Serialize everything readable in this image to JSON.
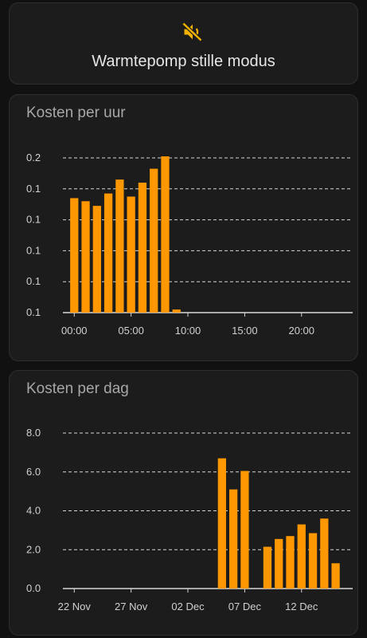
{
  "mode_card": {
    "label": "Warmtepomp stille modus",
    "icon": "volume-off-icon",
    "icon_color": "#f5b200"
  },
  "colors": {
    "bar": "#ff9800",
    "background": "#111111",
    "card": "#1c1c1c",
    "grid": "#d6d6d6"
  },
  "chart_data": [
    {
      "type": "bar",
      "title": "Kosten per uur",
      "xlabel": "",
      "ylabel": "",
      "x_unit": "hour of day",
      "x_ticks": [
        {
          "label": "00:00",
          "x": 0
        },
        {
          "label": "05:00",
          "x": 5
        },
        {
          "label": "10:00",
          "x": 10
        },
        {
          "label": "15:00",
          "x": 15
        },
        {
          "label": "20:00",
          "x": 20
        }
      ],
      "y_ticks": [
        {
          "label": "0.2",
          "value": 0.204
        },
        {
          "label": "0.1",
          "value": 0.184
        },
        {
          "label": "0.1",
          "value": 0.164
        },
        {
          "label": "0.1",
          "value": 0.144
        },
        {
          "label": "0.1",
          "value": 0.124
        },
        {
          "label": "0.1",
          "value": 0.104
        }
      ],
      "xlim": [
        -1,
        24.5
      ],
      "ylim": [
        0.104,
        0.204
      ],
      "grid": true,
      "x": [
        0,
        1,
        2,
        3,
        4,
        5,
        6,
        7,
        8,
        9
      ],
      "values": [
        0.178,
        0.176,
        0.173,
        0.181,
        0.19,
        0.179,
        0.188,
        0.197,
        0.205,
        0.106
      ]
    },
    {
      "type": "bar",
      "title": "Kosten per dag",
      "xlabel": "",
      "ylabel": "",
      "x_unit": "date",
      "x_ticks": [
        {
          "label": "22 Nov",
          "x": 0
        },
        {
          "label": "27 Nov",
          "x": 5
        },
        {
          "label": "02 Dec",
          "x": 10
        },
        {
          "label": "07 Dec",
          "x": 15
        },
        {
          "label": "12 Dec",
          "x": 20
        }
      ],
      "y_ticks": [
        {
          "label": "8.0",
          "value": 8
        },
        {
          "label": "6.0",
          "value": 6
        },
        {
          "label": "4.0",
          "value": 4
        },
        {
          "label": "2.0",
          "value": 2
        },
        {
          "label": "0.0",
          "value": 0
        }
      ],
      "xlim": [
        -1,
        24.5
      ],
      "ylim": [
        0,
        8
      ],
      "grid": true,
      "x": [
        13,
        14,
        15,
        17,
        18,
        19,
        20,
        21,
        22,
        23
      ],
      "values": [
        6.7,
        5.1,
        6.05,
        2.15,
        2.55,
        2.7,
        3.3,
        2.85,
        3.6,
        1.3
      ]
    }
  ]
}
